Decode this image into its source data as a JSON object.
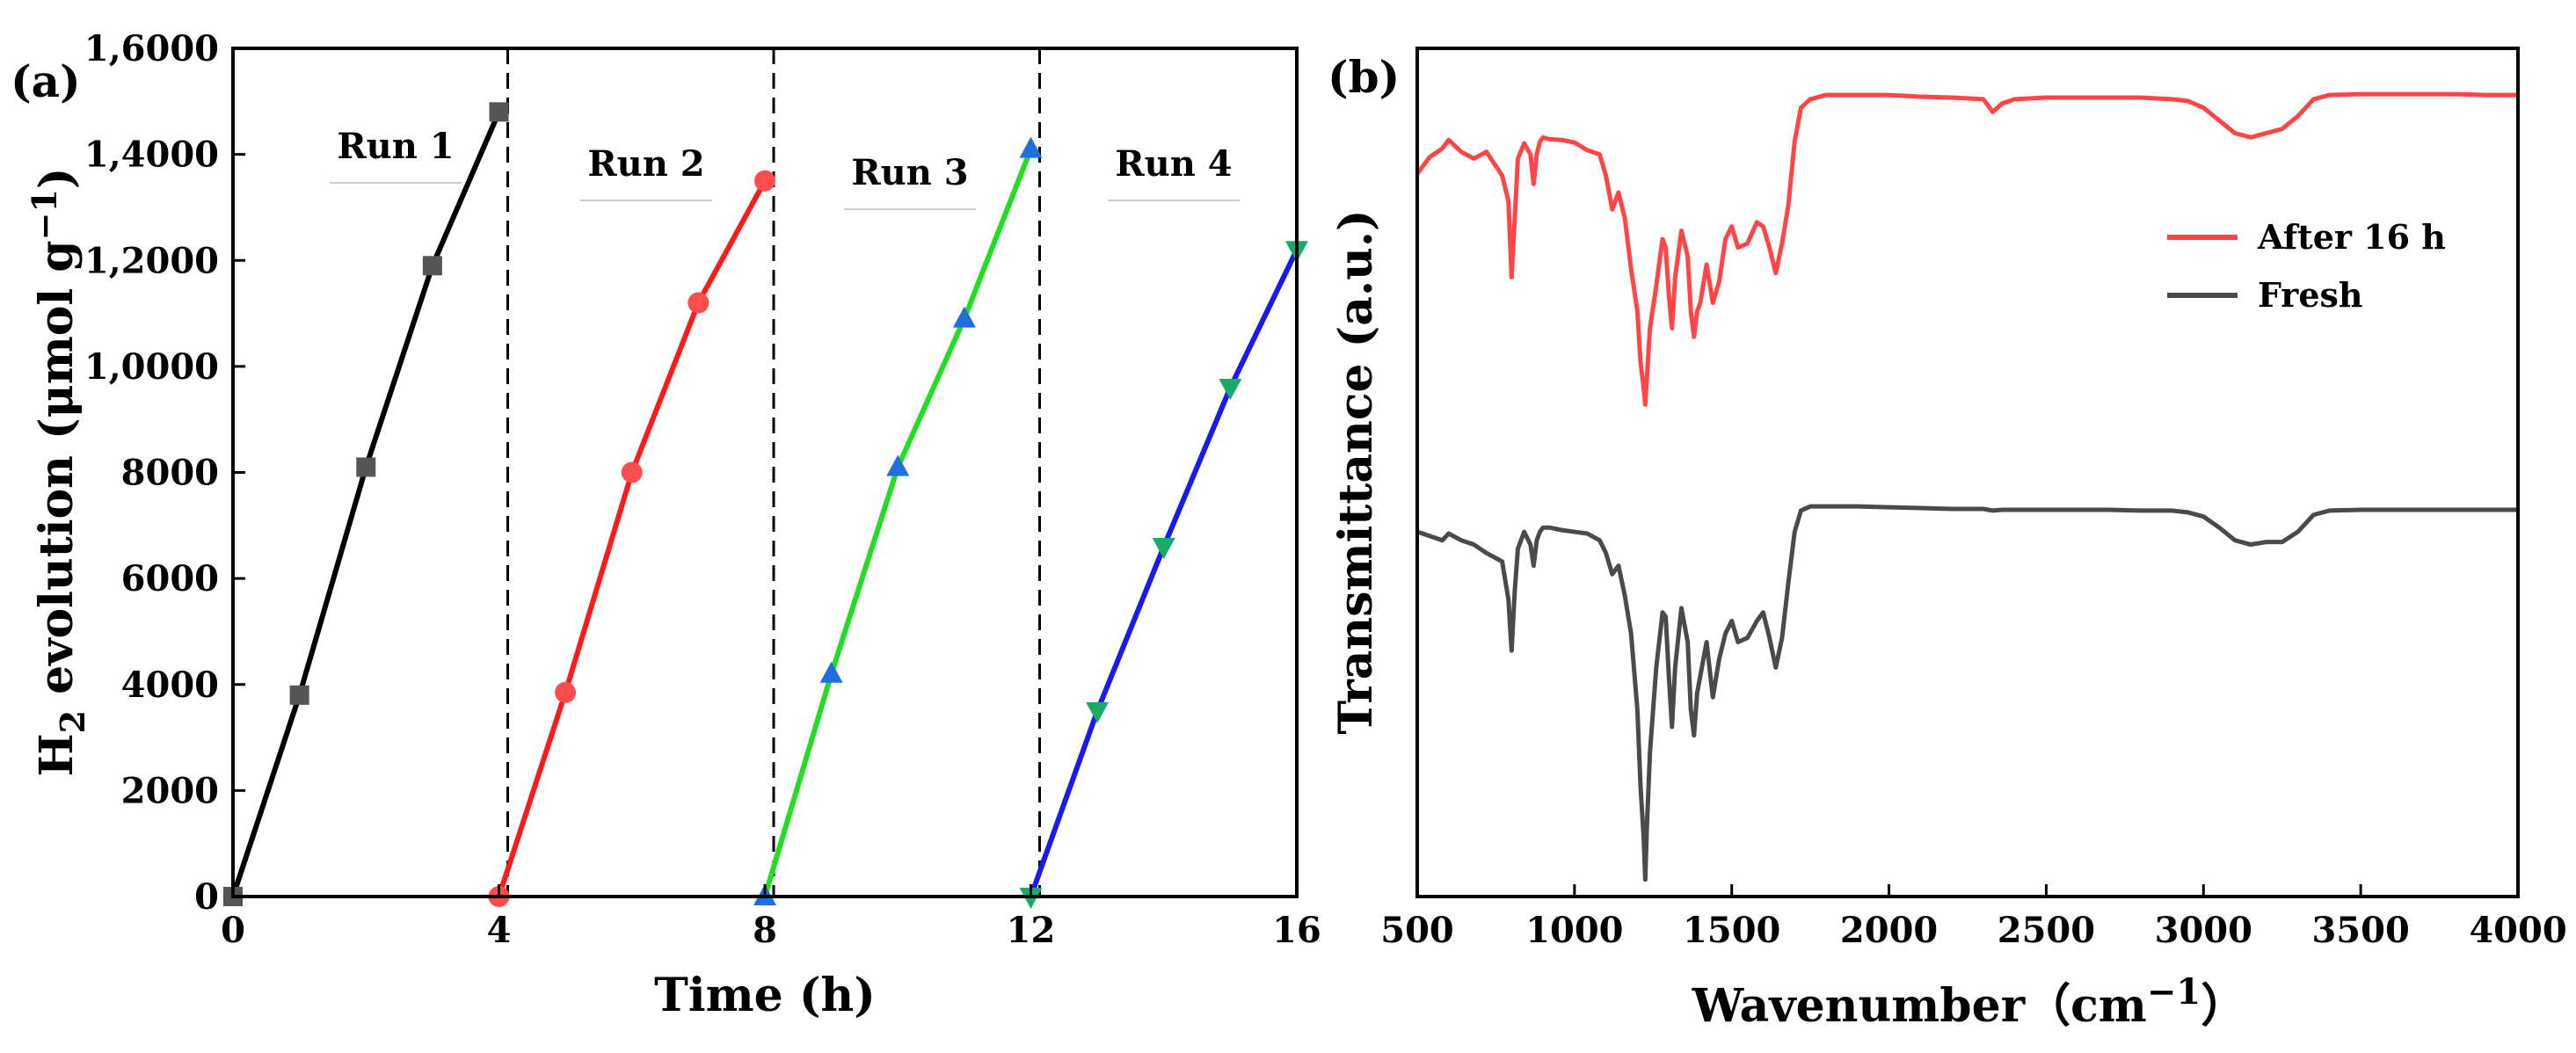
{
  "chart_data": [
    {
      "panel": "(a)",
      "type": "line",
      "title": "",
      "xlabel": "Time (h)",
      "ylabel_main": "H",
      "ylabel_sub": "2",
      "ylabel_rest": " evolution (μmol g",
      "ylabel_sup": "−1",
      "ylabel_end": ")",
      "xlim": [
        0,
        16
      ],
      "ylim": [
        0,
        16000
      ],
      "x_ticks": [
        0,
        4,
        8,
        12,
        16
      ],
      "x_tick_labels": [
        "0",
        "4",
        "8",
        "12",
        "16"
      ],
      "y_ticks": [
        0,
        2000,
        4000,
        6000,
        8000,
        10000,
        12000,
        14000,
        16000
      ],
      "y_tick_labels": [
        "0",
        "2000",
        "4000",
        "6000",
        "8000",
        "1,0000",
        "1,2000",
        "1,4000",
        "1,6000"
      ],
      "dividers_x": [
        4,
        8,
        12
      ],
      "series": [
        {
          "name": "Run 1",
          "color": "#000000",
          "marker_color": "#555555",
          "marker": "square",
          "x": [
            0,
            1,
            2,
            3,
            4
          ],
          "y": [
            0,
            3800,
            8100,
            11900,
            14800
          ]
        },
        {
          "name": "Run 2",
          "color": "#ff1a1a",
          "marker_color": "#ff4d4d",
          "marker": "circle",
          "x": [
            4,
            5,
            6,
            7,
            8
          ],
          "y": [
            0,
            3850,
            8000,
            11200,
            13500
          ]
        },
        {
          "name": "Run 3",
          "color": "#22dd22",
          "marker_color": "#1f6fdd",
          "marker": "triangle-up",
          "x": [
            8,
            9,
            10,
            11,
            12
          ],
          "y": [
            0,
            4200,
            8100,
            10900,
            14100
          ]
        },
        {
          "name": "Run 4",
          "color": "#1a1aee",
          "marker_color": "#1aaa6a",
          "marker": "triangle-down",
          "x": [
            12,
            13,
            14,
            15,
            16
          ],
          "y": [
            0,
            3500,
            6600,
            9600,
            12200
          ]
        }
      ]
    },
    {
      "panel": "(b)",
      "type": "line",
      "title": "",
      "xlabel_main": "Wavenumber",
      "xlabel_unit": "（cm",
      "xlabel_sup": "−1",
      "xlabel_end": "）",
      "ylabel": "Transmittance (a.u.)",
      "xlim": [
        500,
        4000
      ],
      "ylim": [
        0,
        1
      ],
      "x_ticks": [
        500,
        1000,
        1500,
        2000,
        2500,
        3000,
        3500,
        4000
      ],
      "x_tick_labels": [
        "500",
        "1000",
        "1500",
        "2000",
        "2500",
        "3000",
        "3500",
        "4000"
      ],
      "legend_position": "upper-right",
      "series": [
        {
          "name": "After 16 h",
          "color": "#ff4545",
          "x": [
            500,
            540,
            580,
            600,
            640,
            680,
            720,
            770,
            790,
            800,
            810,
            820,
            840,
            860,
            870,
            880,
            890,
            900,
            920,
            960,
            1000,
            1040,
            1080,
            1100,
            1120,
            1140,
            1160,
            1180,
            1200,
            1210,
            1220,
            1225,
            1230,
            1240,
            1260,
            1280,
            1290,
            1300,
            1310,
            1320,
            1340,
            1360,
            1370,
            1380,
            1390,
            1400,
            1420,
            1440,
            1460,
            1480,
            1500,
            1520,
            1550,
            1580,
            1600,
            1620,
            1640,
            1660,
            1680,
            1700,
            1720,
            1750,
            1800,
            1900,
            2000,
            2100,
            2200,
            2300,
            2330,
            2360,
            2400,
            2500,
            2600,
            2700,
            2800,
            2900,
            2950,
            3000,
            3050,
            3100,
            3150,
            3200,
            3250,
            3300,
            3350,
            3400,
            3500,
            3600,
            3700,
            3800,
            3900,
            4000
          ],
          "y": [
            0.852,
            0.872,
            0.882,
            0.892,
            0.878,
            0.87,
            0.878,
            0.85,
            0.82,
            0.73,
            0.8,
            0.87,
            0.888,
            0.875,
            0.84,
            0.875,
            0.89,
            0.895,
            0.893,
            0.892,
            0.889,
            0.88,
            0.875,
            0.85,
            0.81,
            0.83,
            0.8,
            0.74,
            0.69,
            0.63,
            0.6,
            0.58,
            0.61,
            0.67,
            0.72,
            0.775,
            0.765,
            0.71,
            0.67,
            0.73,
            0.785,
            0.755,
            0.69,
            0.66,
            0.69,
            0.7,
            0.745,
            0.7,
            0.725,
            0.775,
            0.79,
            0.765,
            0.77,
            0.795,
            0.79,
            0.765,
            0.735,
            0.77,
            0.815,
            0.89,
            0.93,
            0.94,
            0.945,
            0.945,
            0.945,
            0.943,
            0.942,
            0.94,
            0.925,
            0.935,
            0.94,
            0.942,
            0.942,
            0.942,
            0.942,
            0.94,
            0.938,
            0.93,
            0.915,
            0.9,
            0.895,
            0.9,
            0.905,
            0.92,
            0.94,
            0.945,
            0.946,
            0.946,
            0.946,
            0.946,
            0.945,
            0.945
          ]
        },
        {
          "name": "Fresh",
          "color": "#4a4a4a",
          "x": [
            500,
            540,
            580,
            600,
            640,
            680,
            720,
            770,
            790,
            800,
            810,
            820,
            840,
            860,
            870,
            880,
            890,
            900,
            920,
            960,
            1000,
            1040,
            1080,
            1100,
            1120,
            1140,
            1160,
            1180,
            1200,
            1210,
            1220,
            1225,
            1230,
            1240,
            1260,
            1280,
            1290,
            1300,
            1310,
            1320,
            1340,
            1360,
            1370,
            1380,
            1390,
            1400,
            1420,
            1440,
            1460,
            1480,
            1500,
            1520,
            1550,
            1580,
            1600,
            1620,
            1640,
            1660,
            1680,
            1700,
            1720,
            1750,
            1800,
            1900,
            2000,
            2100,
            2200,
            2300,
            2330,
            2360,
            2400,
            2500,
            2600,
            2700,
            2800,
            2900,
            2950,
            3000,
            3050,
            3100,
            3150,
            3200,
            3250,
            3300,
            3350,
            3400,
            3500,
            3600,
            3700,
            3800,
            3900,
            4000
          ],
          "y": [
            0.43,
            0.425,
            0.42,
            0.428,
            0.42,
            0.415,
            0.405,
            0.395,
            0.35,
            0.29,
            0.36,
            0.41,
            0.43,
            0.415,
            0.39,
            0.42,
            0.43,
            0.435,
            0.435,
            0.432,
            0.43,
            0.428,
            0.42,
            0.405,
            0.38,
            0.39,
            0.355,
            0.31,
            0.22,
            0.13,
            0.07,
            0.02,
            0.08,
            0.17,
            0.27,
            0.335,
            0.33,
            0.26,
            0.2,
            0.27,
            0.34,
            0.3,
            0.22,
            0.19,
            0.24,
            0.26,
            0.3,
            0.235,
            0.28,
            0.31,
            0.325,
            0.3,
            0.305,
            0.325,
            0.335,
            0.305,
            0.27,
            0.305,
            0.37,
            0.43,
            0.455,
            0.46,
            0.46,
            0.46,
            0.459,
            0.458,
            0.457,
            0.457,
            0.455,
            0.456,
            0.456,
            0.456,
            0.456,
            0.456,
            0.455,
            0.455,
            0.453,
            0.448,
            0.435,
            0.42,
            0.415,
            0.418,
            0.418,
            0.43,
            0.45,
            0.455,
            0.456,
            0.456,
            0.456,
            0.456,
            0.456,
            0.456
          ]
        }
      ]
    }
  ]
}
